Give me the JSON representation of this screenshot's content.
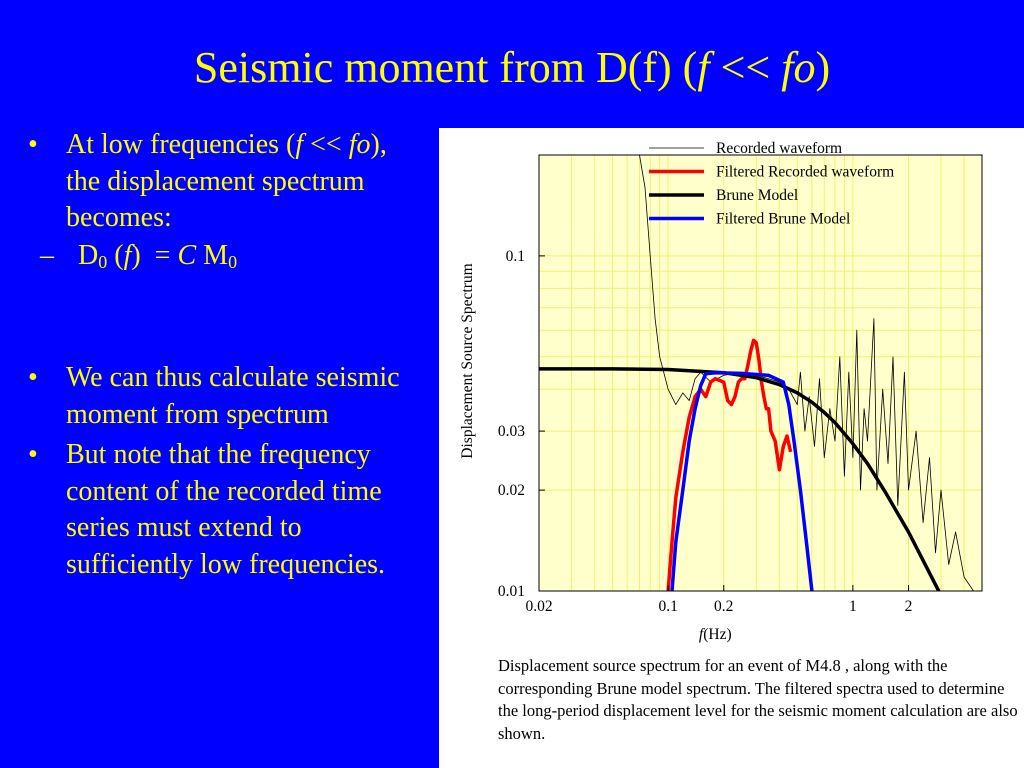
{
  "slide": {
    "title_main": "Seismic moment from D(f) (",
    "title_f": "f",
    "title_op": " << ",
    "title_fo": "fo",
    "title_close": ")"
  },
  "bullets": {
    "b1_pre": "At low frequencies (",
    "b1_f": "f",
    "b1_op": " <<",
    "b1_fo": "fo",
    "b1_post": "), the displacement spectrum becomes:",
    "sub_d": "D",
    "sub_d_idx": "0",
    "sub_open": " (",
    "sub_f": "f",
    "sub_close": ")  = ",
    "sub_c": "C",
    "sub_m": " M",
    "sub_m_idx": "0",
    "b2": "We can thus calculate seismic moment from spectrum",
    "b3": "But note that the frequency content of the recorded time series must extend to sufficiently low frequencies.",
    "bullet_char": "•",
    "dash_char": "–"
  },
  "colors": {
    "background": "#0000ff",
    "text": "#ffff00",
    "plot_bg": "#ffffcc",
    "filtered_recorded": "#ff0000",
    "brune": "#000000",
    "filtered_brune": "#0000ff"
  },
  "caption": "Displacement source spectrum for an event of M4.8 , along with the corresponding Brune model spectrum. The filtered spectra used to determine the long-period displacement level for the seismic moment calculation are also shown.",
  "chart_data": {
    "type": "line",
    "xscale": "log",
    "yscale": "log",
    "xlim": [
      0.02,
      5
    ],
    "ylim": [
      0.01,
      0.2
    ],
    "xlabel_italic": "f",
    "xlabel_rest": "(Hz)",
    "ylabel": "Displacement Source Spectrum",
    "xticks": [
      {
        "v": 0.02,
        "label": "0.02"
      },
      {
        "v": 0.1,
        "label": "0.1"
      },
      {
        "v": 0.2,
        "label": "0.2"
      },
      {
        "v": 1,
        "label": "1"
      },
      {
        "v": 2,
        "label": "2"
      }
    ],
    "yticks": [
      {
        "v": 0.01,
        "label": "0.01"
      },
      {
        "v": 0.02,
        "label": "0.02"
      },
      {
        "v": 0.03,
        "label": "0.03"
      },
      {
        "v": 0.1,
        "label": "0.1"
      }
    ],
    "grid": true,
    "legend_position": "top-right",
    "series": [
      {
        "name": "Recorded waveform",
        "color": "#000000",
        "width": 0.8,
        "points": [
          [
            0.07,
            0.2
          ],
          [
            0.075,
            0.16
          ],
          [
            0.08,
            0.1
          ],
          [
            0.085,
            0.065
          ],
          [
            0.09,
            0.05
          ],
          [
            0.1,
            0.04
          ],
          [
            0.11,
            0.036
          ],
          [
            0.12,
            0.039
          ],
          [
            0.13,
            0.037
          ],
          [
            0.14,
            0.043
          ],
          [
            0.15,
            0.045
          ],
          [
            0.17,
            0.042
          ],
          [
            0.2,
            0.044
          ],
          [
            0.25,
            0.045
          ],
          [
            0.3,
            0.044
          ],
          [
            0.35,
            0.043
          ],
          [
            0.4,
            0.042
          ],
          [
            0.45,
            0.04
          ],
          [
            0.5,
            0.036
          ],
          [
            0.52,
            0.045
          ],
          [
            0.55,
            0.03
          ],
          [
            0.58,
            0.038
          ],
          [
            0.62,
            0.027
          ],
          [
            0.66,
            0.043
          ],
          [
            0.7,
            0.025
          ],
          [
            0.75,
            0.035
          ],
          [
            0.8,
            0.028
          ],
          [
            0.85,
            0.05
          ],
          [
            0.9,
            0.022
          ],
          [
            0.95,
            0.045
          ],
          [
            1.0,
            0.025
          ],
          [
            1.05,
            0.06
          ],
          [
            1.1,
            0.02
          ],
          [
            1.15,
            0.035
          ],
          [
            1.2,
            0.028
          ],
          [
            1.3,
            0.065
          ],
          [
            1.35,
            0.02
          ],
          [
            1.45,
            0.04
          ],
          [
            1.55,
            0.024
          ],
          [
            1.65,
            0.05
          ],
          [
            1.75,
            0.018
          ],
          [
            1.9,
            0.045
          ],
          [
            2.0,
            0.02
          ],
          [
            2.2,
            0.03
          ],
          [
            2.4,
            0.016
          ],
          [
            2.6,
            0.025
          ],
          [
            2.8,
            0.013
          ],
          [
            3.0,
            0.02
          ],
          [
            3.3,
            0.012
          ],
          [
            3.6,
            0.015
          ],
          [
            4.0,
            0.011
          ],
          [
            4.5,
            0.01
          ]
        ]
      },
      {
        "name": "Filtered Recorded waveform",
        "color": "#ff0000",
        "width": 3.5,
        "points": [
          [
            0.1,
            0.01
          ],
          [
            0.105,
            0.014
          ],
          [
            0.11,
            0.019
          ],
          [
            0.12,
            0.026
          ],
          [
            0.13,
            0.033
          ],
          [
            0.14,
            0.038
          ],
          [
            0.15,
            0.04
          ],
          [
            0.16,
            0.038
          ],
          [
            0.17,
            0.042
          ],
          [
            0.18,
            0.043
          ],
          [
            0.2,
            0.042
          ],
          [
            0.21,
            0.037
          ],
          [
            0.22,
            0.036
          ],
          [
            0.23,
            0.038
          ],
          [
            0.24,
            0.042
          ],
          [
            0.25,
            0.043
          ],
          [
            0.26,
            0.043
          ],
          [
            0.27,
            0.047
          ],
          [
            0.28,
            0.052
          ],
          [
            0.29,
            0.056
          ],
          [
            0.3,
            0.055
          ],
          [
            0.31,
            0.049
          ],
          [
            0.32,
            0.042
          ],
          [
            0.33,
            0.038
          ],
          [
            0.34,
            0.035
          ],
          [
            0.35,
            0.035
          ],
          [
            0.36,
            0.03
          ],
          [
            0.38,
            0.028
          ],
          [
            0.4,
            0.023
          ],
          [
            0.42,
            0.027
          ],
          [
            0.44,
            0.029
          ],
          [
            0.46,
            0.026
          ]
        ]
      },
      {
        "name": "Brune Model",
        "color": "#000000",
        "width": 3.5,
        "points": [
          [
            0.02,
            0.046
          ],
          [
            0.05,
            0.046
          ],
          [
            0.1,
            0.0458
          ],
          [
            0.2,
            0.0448
          ],
          [
            0.3,
            0.0433
          ],
          [
            0.4,
            0.0413
          ],
          [
            0.5,
            0.039
          ],
          [
            0.6,
            0.0366
          ],
          [
            0.7,
            0.0341
          ],
          [
            0.8,
            0.0318
          ],
          [
            1.0,
            0.0275
          ],
          [
            1.2,
            0.024
          ],
          [
            1.5,
            0.0197
          ],
          [
            2.0,
            0.015
          ],
          [
            2.5,
            0.0118
          ],
          [
            3.0,
            0.0097
          ]
        ]
      },
      {
        "name": "Filtered Brune Model",
        "color": "#0000ff",
        "width": 3.5,
        "points": [
          [
            0.105,
            0.01
          ],
          [
            0.11,
            0.014
          ],
          [
            0.12,
            0.02
          ],
          [
            0.13,
            0.028
          ],
          [
            0.14,
            0.035
          ],
          [
            0.15,
            0.041
          ],
          [
            0.16,
            0.0445
          ],
          [
            0.18,
            0.0448
          ],
          [
            0.25,
            0.0446
          ],
          [
            0.35,
            0.044
          ],
          [
            0.42,
            0.042
          ],
          [
            0.45,
            0.036
          ],
          [
            0.48,
            0.028
          ],
          [
            0.52,
            0.02
          ],
          [
            0.56,
            0.014
          ],
          [
            0.6,
            0.01
          ]
        ]
      }
    ]
  }
}
